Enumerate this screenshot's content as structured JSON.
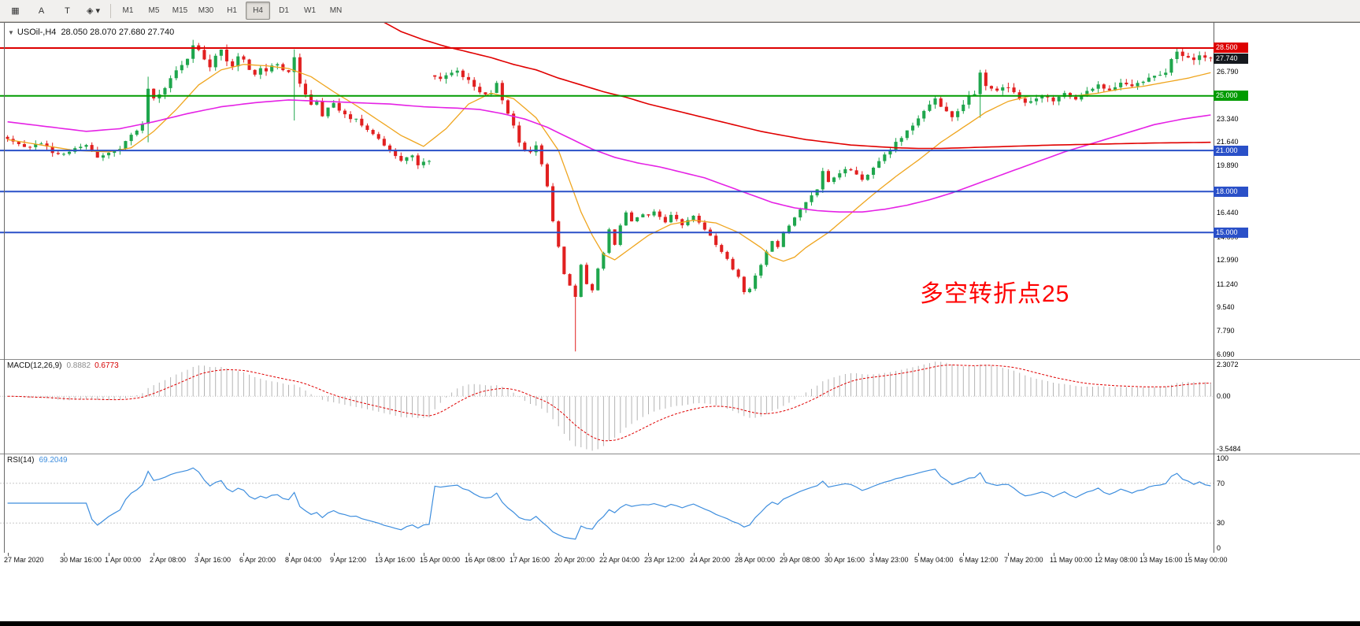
{
  "toolbar": {
    "tools": [
      {
        "name": "grid-tool",
        "glyph": "▦"
      },
      {
        "name": "text-tool",
        "glyph": "A"
      },
      {
        "name": "text-label-tool",
        "glyph": "T"
      },
      {
        "name": "shapes-tool",
        "glyph": "◈ ▾"
      }
    ],
    "timeframes": [
      "M1",
      "M5",
      "M15",
      "M30",
      "H1",
      "H4",
      "D1",
      "W1",
      "MN"
    ],
    "active_timeframe": "H4"
  },
  "main_chart": {
    "dropdown_icon": "▼",
    "title": "USOil-,H4",
    "ohlc": "28.050 28.070 27.680 27.740",
    "annotation": {
      "text": "多空转折点25",
      "color": "#ff0000"
    },
    "levels": [
      {
        "value": 28.5,
        "color": "#dd0000",
        "width": 2
      },
      {
        "value": 25.0,
        "color": "#009b00",
        "width": 2
      },
      {
        "value": 21.0,
        "color": "#2a50c8",
        "width": 2
      },
      {
        "value": 18.0,
        "color": "#2a50c8",
        "width": 2
      },
      {
        "value": 15.0,
        "color": "#2a50c8",
        "width": 2
      }
    ],
    "price_axis": {
      "price_min": 5.74,
      "price_max": 30.4,
      "ticks": [
        {
          "v": 26.79,
          "t": "26.790"
        },
        {
          "v": 23.34,
          "t": "23.340"
        },
        {
          "v": 21.64,
          "t": "21.640"
        },
        {
          "v": 19.89,
          "t": "19.890"
        },
        {
          "v": 16.44,
          "t": "16.440"
        },
        {
          "v": 14.69,
          "t": "14.690"
        },
        {
          "v": 12.99,
          "t": "12.990"
        },
        {
          "v": 11.24,
          "t": "11.240"
        },
        {
          "v": 9.54,
          "t": "9.540"
        },
        {
          "v": 7.79,
          "t": "7.790"
        },
        {
          "v": 6.09,
          "t": "6.090"
        }
      ],
      "level_labels": [
        {
          "v": 28.5,
          "t": "28.500",
          "color": "#dd0000"
        },
        {
          "v": 27.74,
          "t": "27.740",
          "color": "#15191e"
        },
        {
          "v": 25.0,
          "t": "25.000",
          "color": "#009b00"
        },
        {
          "v": 21.0,
          "t": "21.000",
          "color": "#2a50c8"
        },
        {
          "v": 18.0,
          "t": "18.000",
          "color": "#2a50c8"
        },
        {
          "v": 15.0,
          "t": "15.000",
          "color": "#2a50c8"
        }
      ]
    }
  },
  "chart_data": {
    "type": "candlestick",
    "symbol": "USOil-",
    "period": "H4",
    "open": 28.05,
    "high": 28.07,
    "low": 27.68,
    "close": 27.74,
    "n_candles": 215,
    "price_range": [
      5.74,
      30.4
    ],
    "noise_seed": 11,
    "noise_amp": 0.12,
    "gap_indices": [
      76
    ],
    "colors": {
      "up": "#1fa64d",
      "down": "#e12020",
      "ma_fast": "#efa51e",
      "ma_mid": "#e522e5",
      "ma_slow": "#e00000",
      "macd_hist": "#b4b4b4",
      "macd_signal": "#e00000",
      "rsi": "#3e8ede"
    },
    "close_anchors": [
      [
        0,
        21.9
      ],
      [
        2,
        21.5
      ],
      [
        4,
        21.2
      ],
      [
        6,
        21.6
      ],
      [
        8,
        20.9
      ],
      [
        10,
        20.7
      ],
      [
        12,
        21.2
      ],
      [
        14,
        21.4
      ],
      [
        16,
        20.5
      ],
      [
        18,
        20.8
      ],
      [
        20,
        21.2
      ],
      [
        22,
        22.1
      ],
      [
        24,
        23.0
      ],
      [
        25,
        25.6
      ],
      [
        26,
        24.8
      ],
      [
        28,
        25.6
      ],
      [
        30,
        26.8
      ],
      [
        32,
        27.6
      ],
      [
        33,
        28.8
      ],
      [
        34,
        28.4
      ],
      [
        35,
        27.6
      ],
      [
        36,
        27.2
      ],
      [
        37,
        28.0
      ],
      [
        38,
        28.3
      ],
      [
        39,
        27.6
      ],
      [
        40,
        27.2
      ],
      [
        41,
        27.8
      ],
      [
        42,
        27.6
      ],
      [
        43,
        26.8
      ],
      [
        44,
        26.5
      ],
      [
        45,
        27.1
      ],
      [
        46,
        26.8
      ],
      [
        47,
        27.2
      ],
      [
        48,
        27.3
      ],
      [
        49,
        26.9
      ],
      [
        50,
        26.8
      ],
      [
        51,
        27.8
      ],
      [
        52,
        25.9
      ],
      [
        53,
        25.2
      ],
      [
        54,
        24.3
      ],
      [
        55,
        24.7
      ],
      [
        56,
        23.6
      ],
      [
        57,
        24.1
      ],
      [
        58,
        24.5
      ],
      [
        59,
        23.9
      ],
      [
        60,
        23.7
      ],
      [
        61,
        23.2
      ],
      [
        62,
        23.4
      ],
      [
        63,
        22.9
      ],
      [
        64,
        22.6
      ],
      [
        65,
        22.2
      ],
      [
        66,
        21.9
      ],
      [
        67,
        21.4
      ],
      [
        68,
        21.0
      ],
      [
        69,
        20.6
      ],
      [
        70,
        20.3
      ],
      [
        71,
        20.5
      ],
      [
        72,
        20.7
      ],
      [
        73,
        19.9
      ],
      [
        74,
        20.2
      ],
      [
        75,
        20.3
      ],
      [
        76,
        26.5
      ],
      [
        77,
        26.2
      ],
      [
        78,
        26.4
      ],
      [
        79,
        26.8
      ],
      [
        80,
        26.9
      ],
      [
        81,
        26.4
      ],
      [
        82,
        26.1
      ],
      [
        83,
        25.7
      ],
      [
        84,
        25.3
      ],
      [
        85,
        25.0
      ],
      [
        86,
        25.2
      ],
      [
        87,
        25.9
      ],
      [
        88,
        24.6
      ],
      [
        89,
        23.8
      ],
      [
        90,
        22.8
      ],
      [
        91,
        21.6
      ],
      [
        92,
        21.1
      ],
      [
        93,
        20.9
      ],
      [
        94,
        21.3
      ],
      [
        95,
        20.0
      ],
      [
        96,
        18.3
      ],
      [
        97,
        15.8
      ],
      [
        98,
        13.9
      ],
      [
        99,
        12.0
      ],
      [
        100,
        11.1
      ],
      [
        101,
        10.3
      ],
      [
        102,
        12.7
      ],
      [
        103,
        11.2
      ],
      [
        104,
        10.8
      ],
      [
        105,
        12.4
      ],
      [
        106,
        13.5
      ],
      [
        107,
        15.2
      ],
      [
        108,
        14.1
      ],
      [
        109,
        15.5
      ],
      [
        110,
        16.4
      ],
      [
        111,
        15.8
      ],
      [
        112,
        16.1
      ],
      [
        113,
        16.4
      ],
      [
        114,
        16.2
      ],
      [
        115,
        16.5
      ],
      [
        116,
        16.1
      ],
      [
        117,
        15.8
      ],
      [
        118,
        16.3
      ],
      [
        119,
        16.0
      ],
      [
        120,
        15.6
      ],
      [
        121,
        16.0
      ],
      [
        122,
        16.3
      ],
      [
        123,
        15.8
      ],
      [
        124,
        15.2
      ],
      [
        125,
        14.7
      ],
      [
        126,
        14.1
      ],
      [
        127,
        13.6
      ],
      [
        128,
        13.0
      ],
      [
        129,
        12.3
      ],
      [
        130,
        11.7
      ],
      [
        131,
        10.6
      ],
      [
        132,
        10.9
      ],
      [
        133,
        11.9
      ],
      [
        134,
        12.6
      ],
      [
        135,
        13.6
      ],
      [
        136,
        14.4
      ],
      [
        137,
        14.0
      ],
      [
        138,
        15.0
      ],
      [
        139,
        15.5
      ],
      [
        140,
        16.1
      ],
      [
        141,
        16.7
      ],
      [
        142,
        17.2
      ],
      [
        143,
        17.7
      ],
      [
        144,
        18.2
      ],
      [
        145,
        19.5
      ],
      [
        146,
        18.7
      ],
      [
        147,
        19.0
      ],
      [
        148,
        19.3
      ],
      [
        149,
        19.6
      ],
      [
        150,
        19.5
      ],
      [
        151,
        19.2
      ],
      [
        152,
        18.9
      ],
      [
        153,
        19.3
      ],
      [
        154,
        19.7
      ],
      [
        155,
        20.2
      ],
      [
        156,
        20.7
      ],
      [
        157,
        21.1
      ],
      [
        158,
        21.6
      ],
      [
        159,
        22.0
      ],
      [
        160,
        22.4
      ],
      [
        161,
        22.9
      ],
      [
        162,
        23.3
      ],
      [
        163,
        23.8
      ],
      [
        164,
        24.3
      ],
      [
        165,
        24.9
      ],
      [
        166,
        24.1
      ],
      [
        167,
        23.8
      ],
      [
        168,
        23.5
      ],
      [
        169,
        23.9
      ],
      [
        170,
        24.4
      ],
      [
        171,
        24.9
      ],
      [
        172,
        25.2
      ],
      [
        173,
        26.7
      ],
      [
        174,
        25.8
      ],
      [
        175,
        25.5
      ],
      [
        176,
        25.3
      ],
      [
        177,
        25.6
      ],
      [
        178,
        25.7
      ],
      [
        179,
        25.2
      ],
      [
        180,
        24.9
      ],
      [
        181,
        24.6
      ],
      [
        182,
        24.5
      ],
      [
        183,
        24.8
      ],
      [
        184,
        25.1
      ],
      [
        185,
        24.9
      ],
      [
        186,
        24.7
      ],
      [
        187,
        25.0
      ],
      [
        188,
        25.2
      ],
      [
        189,
        25.0
      ],
      [
        190,
        24.8
      ],
      [
        191,
        25.1
      ],
      [
        192,
        25.4
      ],
      [
        193,
        25.6
      ],
      [
        194,
        25.8
      ],
      [
        195,
        25.5
      ],
      [
        196,
        25.4
      ],
      [
        197,
        25.7
      ],
      [
        198,
        26.0
      ],
      [
        199,
        25.8
      ],
      [
        200,
        25.6
      ],
      [
        201,
        25.9
      ],
      [
        202,
        26.1
      ],
      [
        203,
        26.3
      ],
      [
        204,
        26.4
      ],
      [
        205,
        26.6
      ],
      [
        206,
        26.8
      ],
      [
        207,
        27.8
      ],
      [
        208,
        28.2
      ],
      [
        209,
        27.9
      ],
      [
        210,
        27.8
      ],
      [
        211,
        27.6
      ],
      [
        212,
        27.9
      ],
      [
        213,
        27.7
      ],
      [
        214,
        27.74
      ]
    ],
    "wick_overrides": [
      {
        "i": 25,
        "h": 26.4,
        "l": 21.6
      },
      {
        "i": 33,
        "h": 29.1
      },
      {
        "i": 51,
        "h": 28.4,
        "l": 23.2
      },
      {
        "i": 95,
        "h": 21.5
      },
      {
        "i": 101,
        "l": 6.3
      },
      {
        "i": 173,
        "h": 26.9,
        "l": 23.4
      },
      {
        "i": 208,
        "h": 28.5
      }
    ],
    "ma_fast_anchors": [
      [
        0,
        21.8
      ],
      [
        6,
        21.4
      ],
      [
        12,
        21.0
      ],
      [
        18,
        20.9
      ],
      [
        22,
        21.2
      ],
      [
        26,
        22.4
      ],
      [
        30,
        24.0
      ],
      [
        34,
        25.8
      ],
      [
        38,
        26.9
      ],
      [
        42,
        27.3
      ],
      [
        46,
        27.2
      ],
      [
        50,
        27.0
      ],
      [
        54,
        26.4
      ],
      [
        58,
        25.3
      ],
      [
        62,
        24.3
      ],
      [
        66,
        23.2
      ],
      [
        70,
        22.1
      ],
      [
        74,
        21.3
      ],
      [
        78,
        22.6
      ],
      [
        82,
        24.4
      ],
      [
        86,
        25.2
      ],
      [
        90,
        24.8
      ],
      [
        94,
        23.4
      ],
      [
        98,
        21.0
      ],
      [
        102,
        16.5
      ],
      [
        104,
        14.8
      ],
      [
        106,
        13.4
      ],
      [
        108,
        13.0
      ],
      [
        110,
        13.6
      ],
      [
        114,
        14.8
      ],
      [
        118,
        15.6
      ],
      [
        122,
        15.9
      ],
      [
        126,
        15.7
      ],
      [
        130,
        15.0
      ],
      [
        134,
        13.9
      ],
      [
        136,
        13.2
      ],
      [
        138,
        12.9
      ],
      [
        140,
        13.2
      ],
      [
        142,
        13.9
      ],
      [
        146,
        15.0
      ],
      [
        150,
        16.4
      ],
      [
        154,
        17.8
      ],
      [
        158,
        19.1
      ],
      [
        162,
        20.3
      ],
      [
        166,
        21.6
      ],
      [
        170,
        22.7
      ],
      [
        174,
        23.8
      ],
      [
        178,
        24.6
      ],
      [
        182,
        25.0
      ],
      [
        186,
        25.0
      ],
      [
        190,
        25.0
      ],
      [
        194,
        25.2
      ],
      [
        198,
        25.5
      ],
      [
        202,
        25.7
      ],
      [
        206,
        26.0
      ],
      [
        210,
        26.3
      ],
      [
        214,
        26.7
      ]
    ],
    "ma_mid_anchors": [
      [
        0,
        23.1
      ],
      [
        8,
        22.7
      ],
      [
        14,
        22.4
      ],
      [
        20,
        22.6
      ],
      [
        26,
        23.1
      ],
      [
        32,
        23.7
      ],
      [
        38,
        24.2
      ],
      [
        44,
        24.5
      ],
      [
        50,
        24.7
      ],
      [
        56,
        24.6
      ],
      [
        62,
        24.5
      ],
      [
        68,
        24.4
      ],
      [
        74,
        24.2
      ],
      [
        80,
        24.1
      ],
      [
        84,
        24.0
      ],
      [
        88,
        23.7
      ],
      [
        92,
        23.3
      ],
      [
        96,
        22.7
      ],
      [
        100,
        21.9
      ],
      [
        104,
        21.1
      ],
      [
        108,
        20.5
      ],
      [
        112,
        20.1
      ],
      [
        116,
        19.8
      ],
      [
        120,
        19.4
      ],
      [
        124,
        19.0
      ],
      [
        128,
        18.4
      ],
      [
        132,
        17.8
      ],
      [
        136,
        17.2
      ],
      [
        140,
        16.8
      ],
      [
        144,
        16.6
      ],
      [
        148,
        16.5
      ],
      [
        152,
        16.5
      ],
      [
        156,
        16.7
      ],
      [
        160,
        17.0
      ],
      [
        164,
        17.4
      ],
      [
        168,
        17.9
      ],
      [
        172,
        18.5
      ],
      [
        176,
        19.1
      ],
      [
        180,
        19.7
      ],
      [
        184,
        20.3
      ],
      [
        188,
        20.9
      ],
      [
        192,
        21.4
      ],
      [
        196,
        21.9
      ],
      [
        200,
        22.4
      ],
      [
        204,
        22.9
      ],
      [
        209,
        23.3
      ],
      [
        214,
        23.6
      ]
    ],
    "ma_slow_anchors": [
      [
        66,
        30.6
      ],
      [
        70,
        29.7
      ],
      [
        74,
        29.1
      ],
      [
        78,
        28.6
      ],
      [
        82,
        28.2
      ],
      [
        86,
        27.8
      ],
      [
        90,
        27.3
      ],
      [
        94,
        26.9
      ],
      [
        98,
        26.3
      ],
      [
        102,
        25.8
      ],
      [
        106,
        25.3
      ],
      [
        110,
        24.9
      ],
      [
        114,
        24.4
      ],
      [
        118,
        24.0
      ],
      [
        122,
        23.6
      ],
      [
        126,
        23.2
      ],
      [
        130,
        22.8
      ],
      [
        134,
        22.4
      ],
      [
        138,
        22.1
      ],
      [
        142,
        21.8
      ],
      [
        146,
        21.6
      ],
      [
        150,
        21.4
      ],
      [
        154,
        21.3
      ],
      [
        158,
        21.2
      ],
      [
        162,
        21.15
      ],
      [
        166,
        21.15
      ],
      [
        170,
        21.2
      ],
      [
        174,
        21.25
      ],
      [
        178,
        21.3
      ],
      [
        182,
        21.35
      ],
      [
        186,
        21.4
      ],
      [
        192,
        21.45
      ],
      [
        198,
        21.5
      ],
      [
        204,
        21.55
      ],
      [
        214,
        21.6
      ]
    ],
    "x_labels": [
      "27 Mar 2020",
      "30 Mar 16:00",
      "1 Apr 00:00",
      "2 Apr 08:00",
      "3 Apr 16:00",
      "6 Apr 20:00",
      "8 Apr 04:00",
      "9 Apr 12:00",
      "13 Apr 16:00",
      "15 Apr 00:00",
      "16 Apr 08:00",
      "17 Apr 16:00",
      "20 Apr 20:00",
      "22 Apr 04:00",
      "23 Apr 12:00",
      "24 Apr 20:00",
      "28 Apr 00:00",
      "29 Apr 08:00",
      "30 Apr 16:00",
      "3 May 23:00",
      "5 May 04:00",
      "6 May 12:00",
      "7 May 20:00",
      "11 May 00:00",
      "12 May 08:00",
      "13 May 16:00",
      "15 May 00:00"
    ]
  },
  "macd": {
    "label": "MACD(12,26,9)",
    "main_value": "0.8882",
    "signal_value": "0.6773",
    "axis": [
      "2.3072",
      "0.00",
      "-3.5484"
    ],
    "range": [
      -3.5484,
      2.3072
    ],
    "params": {
      "fast": 12,
      "slow": 26,
      "signal": 9
    }
  },
  "rsi": {
    "label": "RSI(14)",
    "value": "69.2049",
    "axis": [
      "100",
      "70",
      "30",
      "0"
    ],
    "levels": [
      70,
      30
    ],
    "range": [
      0,
      100
    ],
    "period": 14
  }
}
